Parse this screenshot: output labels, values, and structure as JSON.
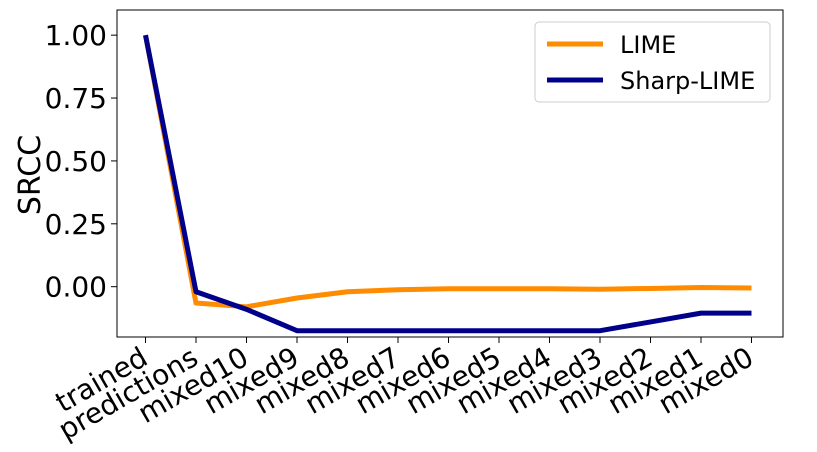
{
  "chart_data": {
    "type": "line",
    "categories": [
      "trained",
      "predictions",
      "mixed10",
      "mixed9",
      "mixed8",
      "mixed7",
      "mixed6",
      "mixed5",
      "mixed4",
      "mixed3",
      "mixed2",
      "mixed1",
      "mixed0"
    ],
    "series": [
      {
        "name": "LIME",
        "color": "#ff8c00",
        "values": [
          1.0,
          -0.065,
          -0.08,
          -0.045,
          -0.02,
          -0.012,
          -0.008,
          -0.008,
          -0.008,
          -0.01,
          -0.007,
          -0.003,
          -0.005
        ]
      },
      {
        "name": "Sharp-LIME",
        "color": "#00008b",
        "values": [
          1.0,
          -0.02,
          -0.09,
          -0.175,
          -0.175,
          -0.175,
          -0.175,
          -0.175,
          -0.175,
          -0.175,
          -0.14,
          -0.105,
          -0.105
        ]
      }
    ],
    "ylabel": "SRCC",
    "xlabel": "",
    "ylim": [
      -0.2,
      1.1
    ],
    "yticks": [
      "1.00",
      "0.75",
      "0.50",
      "0.25",
      "0.00"
    ],
    "ytick_values": [
      1.0,
      0.75,
      0.5,
      0.25,
      0.0
    ],
    "legend_position": "top-right",
    "grid": false
  }
}
